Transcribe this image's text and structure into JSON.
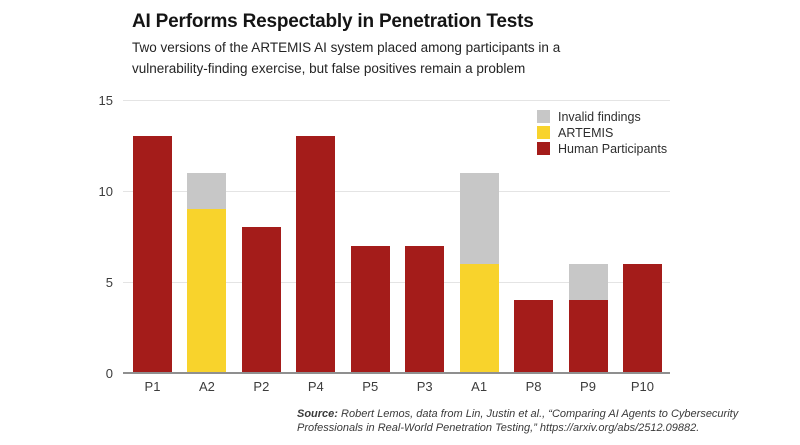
{
  "header": {
    "title": "AI Performs Respectably in Penetration Tests",
    "subtitle_line1": "Two versions of the ARTEMIS AI system placed among participants in a",
    "subtitle_line2": "vulnerability-finding exercise, but false positives remain a problem"
  },
  "chart_data": {
    "type": "bar",
    "stacked": true,
    "title": "AI Performs Respectably in Penetration Tests",
    "categories": [
      "P1",
      "A2",
      "P2",
      "P4",
      "P5",
      "P3",
      "A1",
      "P8",
      "P9",
      "P10"
    ],
    "series": [
      {
        "name": "Human Participants",
        "color": "#a41c1a",
        "values": [
          13,
          0,
          8,
          13,
          7,
          7,
          0,
          4,
          4,
          6
        ]
      },
      {
        "name": "ARTEMIS",
        "color": "#f8d32c",
        "values": [
          0,
          9,
          0,
          0,
          0,
          0,
          6,
          0,
          0,
          0
        ]
      },
      {
        "name": "Invalid findings",
        "color": "#c7c7c7",
        "values": [
          0,
          2,
          0,
          0,
          0,
          0,
          5,
          0,
          2,
          0
        ]
      }
    ],
    "totals": {
      "P1": 13,
      "A2": 11,
      "P2": 8,
      "P4": 13,
      "P5": 7,
      "P3": 7,
      "A1": 11,
      "P8": 4,
      "P9": 6,
      "P10": 6
    },
    "xlabel": "",
    "ylabel": "",
    "ylim": [
      0,
      15
    ],
    "yticks": [
      0,
      5,
      10,
      15
    ],
    "grid": true,
    "legend_position": "top-right",
    "legend_order": [
      "Invalid findings",
      "ARTEMIS",
      "Human Participants"
    ]
  },
  "source": {
    "prefix": "Source:",
    "line1_rest": " Robert Lemos, data from Lin, Justin et al., “Comparing AI Agents to Cybersecurity",
    "line2": "Professionals in Real-World Penetration Testing,” https://arxiv.org/abs/2512.09882."
  },
  "colors": {
    "human": "#a41c1a",
    "artemis": "#f8d32c",
    "invalid": "#c7c7c7",
    "gridline": "#e4e4e4",
    "axis": "#8f8f8f",
    "background": "#ffffff"
  }
}
